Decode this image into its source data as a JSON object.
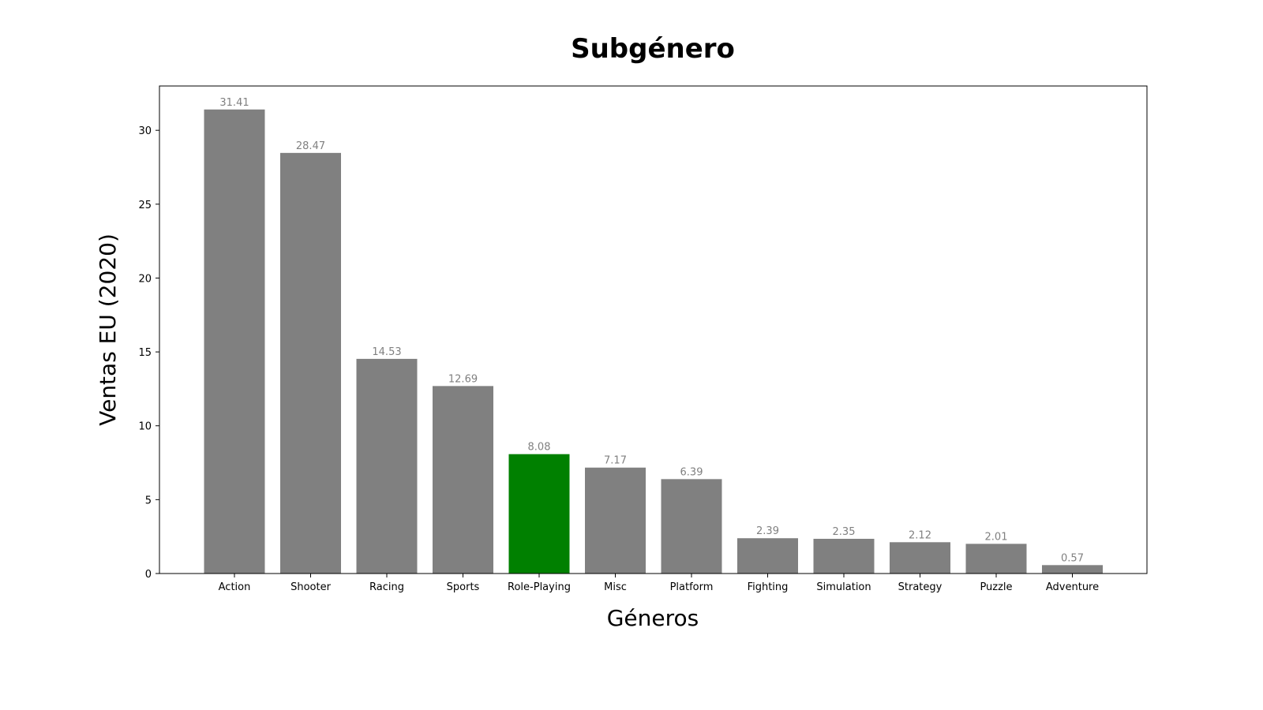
{
  "chart_data": {
    "type": "bar",
    "title": "Subgénero",
    "xlabel": "Géneros",
    "ylabel": "Ventas EU (2020)",
    "categories": [
      "Action",
      "Shooter",
      "Racing",
      "Sports",
      "Role-Playing",
      "Misc",
      "Platform",
      "Fighting",
      "Simulation",
      "Strategy",
      "Puzzle",
      "Adventure"
    ],
    "values": [
      31.41,
      28.47,
      14.53,
      12.69,
      8.08,
      7.17,
      6.39,
      2.39,
      2.35,
      2.12,
      2.01,
      0.57
    ],
    "data_labels": [
      "31.41",
      "28.47",
      "14.53",
      "12.69",
      "8.08",
      "7.17",
      "6.39",
      "2.39",
      "2.35",
      "2.12",
      "2.01",
      "0.57"
    ],
    "highlight": "Role-Playing",
    "ylim": [
      0,
      33.0
    ],
    "yticks": [
      0,
      5,
      10,
      15,
      20,
      25,
      30
    ],
    "grid": false,
    "legend": "none",
    "colors": {
      "bar": "#808080",
      "highlight": "#008000",
      "data_label": "#808080"
    }
  }
}
